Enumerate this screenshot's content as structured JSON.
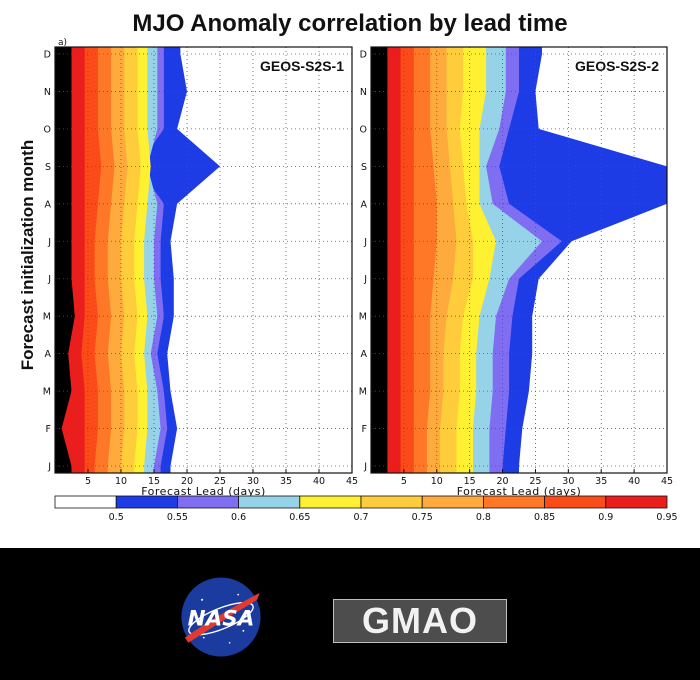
{
  "title": "MJO Anomaly correlation by lead time",
  "ylabel": "Forecast initialization month",
  "colorbar": {
    "levels": [
      0.5,
      0.55,
      0.6,
      0.65,
      0.7,
      0.75,
      0.8,
      0.85,
      0.9,
      0.95
    ],
    "colors": [
      "#ffffff",
      "#1e3ce6",
      "#7f6ef2",
      "#96d2e8",
      "#fff032",
      "#ffcd3c",
      "#ffaa3c",
      "#ff7828",
      "#fa4b19",
      "#eb1e1e"
    ]
  },
  "chart_data": [
    {
      "type": "heatmap",
      "panel_label": "a)",
      "model": "GEOS-S2S-1",
      "xlabel": "Forecast Lead (days)",
      "xticks": [
        5,
        10,
        15,
        20,
        25,
        30,
        35,
        40,
        45
      ],
      "xlim": [
        0,
        45
      ],
      "ytick_labels": [
        "J",
        "F",
        "M",
        "A",
        "M",
        "J",
        "J",
        "A",
        "S",
        "O",
        "N",
        "D"
      ],
      "contour_boundaries_days": {
        "0.95": [
          2.5,
          1.0,
          2.5,
          2.0,
          3.0,
          2.5,
          2.5,
          2.5,
          2.5,
          2.5,
          2.5,
          2.5
        ],
        "0.90": [
          4.5,
          4.5,
          4.5,
          4.0,
          4.5,
          4.5,
          4.5,
          4.5,
          4.5,
          4.5,
          4.5,
          4.5
        ],
        "0.85": [
          6.0,
          6.5,
          6.5,
          6.0,
          6.5,
          6.0,
          6.0,
          6.5,
          7.0,
          6.5,
          6.5,
          6.5
        ],
        "0.80": [
          8.0,
          8.5,
          8.5,
          8.0,
          8.5,
          8.0,
          8.0,
          8.5,
          9.0,
          8.5,
          8.5,
          8.5
        ],
        "0.75": [
          10.0,
          10.5,
          10.5,
          10.0,
          10.5,
          10.0,
          10.0,
          10.5,
          11.0,
          10.5,
          10.5,
          10.5
        ],
        "0.70": [
          12.0,
          12.5,
          12.5,
          12.0,
          12.5,
          12.0,
          12.0,
          12.5,
          13.0,
          12.5,
          12.5,
          12.5
        ],
        "0.65": [
          13.5,
          14.0,
          14.0,
          13.5,
          14.0,
          13.5,
          13.5,
          14.0,
          14.5,
          14.0,
          14.0,
          14.0
        ],
        "0.60": [
          15.0,
          16.0,
          15.5,
          14.5,
          15.5,
          15.0,
          15.0,
          15.5,
          14.0,
          15.5,
          15.5,
          15.5
        ],
        "0.55": [
          16.0,
          17.0,
          16.5,
          15.5,
          16.5,
          16.0,
          16.0,
          16.5,
          12.5,
          16.5,
          16.5,
          16.5
        ],
        "0.50": [
          17.5,
          18.5,
          17.5,
          17.0,
          18.0,
          18.0,
          17.5,
          18.5,
          25.0,
          18.5,
          20.0,
          19.0
        ]
      }
    },
    {
      "type": "heatmap",
      "panel_label": "",
      "model": "GEOS-S2S-2",
      "xlabel": "Forecast Lead (days)",
      "xticks": [
        5,
        10,
        15,
        20,
        25,
        30,
        35,
        40,
        45
      ],
      "xlim": [
        0,
        45
      ],
      "ytick_labels": [
        "J",
        "F",
        "M",
        "A",
        "M",
        "J",
        "J",
        "A",
        "S",
        "O",
        "N",
        "D"
      ],
      "contour_boundaries_days": {
        "0.95": [
          2.5,
          2.5,
          2.5,
          2.5,
          2.5,
          2.5,
          2.5,
          2.5,
          2.5,
          2.5,
          2.5,
          2.5
        ],
        "0.90": [
          4.5,
          4.5,
          4.5,
          4.5,
          4.5,
          4.5,
          4.5,
          4.5,
          4.5,
          4.5,
          4.5,
          4.5
        ],
        "0.85": [
          6.5,
          6.5,
          6.5,
          6.5,
          6.5,
          6.5,
          6.5,
          6.5,
          6.5,
          6.5,
          6.5,
          6.5
        ],
        "0.80": [
          8.5,
          8.5,
          9.0,
          9.0,
          9.0,
          9.5,
          10.0,
          10.0,
          9.5,
          9.0,
          9.0,
          9.0
        ],
        "0.75": [
          10.5,
          10.5,
          11.0,
          11.0,
          11.5,
          12.5,
          13.0,
          12.5,
          12.0,
          11.5,
          11.5,
          11.5
        ],
        "0.70": [
          13.0,
          13.0,
          13.5,
          13.5,
          14.0,
          15.5,
          15.5,
          14.5,
          14.0,
          13.5,
          14.0,
          14.0
        ],
        "0.65": [
          15.5,
          15.5,
          16.0,
          16.0,
          16.5,
          18.0,
          19.0,
          16.5,
          16.5,
          16.5,
          17.5,
          17.5
        ],
        "0.60": [
          18.0,
          18.0,
          18.5,
          18.5,
          19.0,
          21.0,
          26.0,
          18.5,
          17.5,
          19.5,
          20.5,
          20.5
        ],
        "0.55": [
          20.0,
          20.5,
          21.0,
          21.0,
          21.5,
          22.5,
          29.0,
          21.0,
          19.5,
          21.0,
          22.5,
          22.5
        ],
        "0.50": [
          22.5,
          23.0,
          24.0,
          24.5,
          24.5,
          25.5,
          30.5,
          45.0,
          45.0,
          25.5,
          25.0,
          26.0
        ]
      }
    }
  ]
}
